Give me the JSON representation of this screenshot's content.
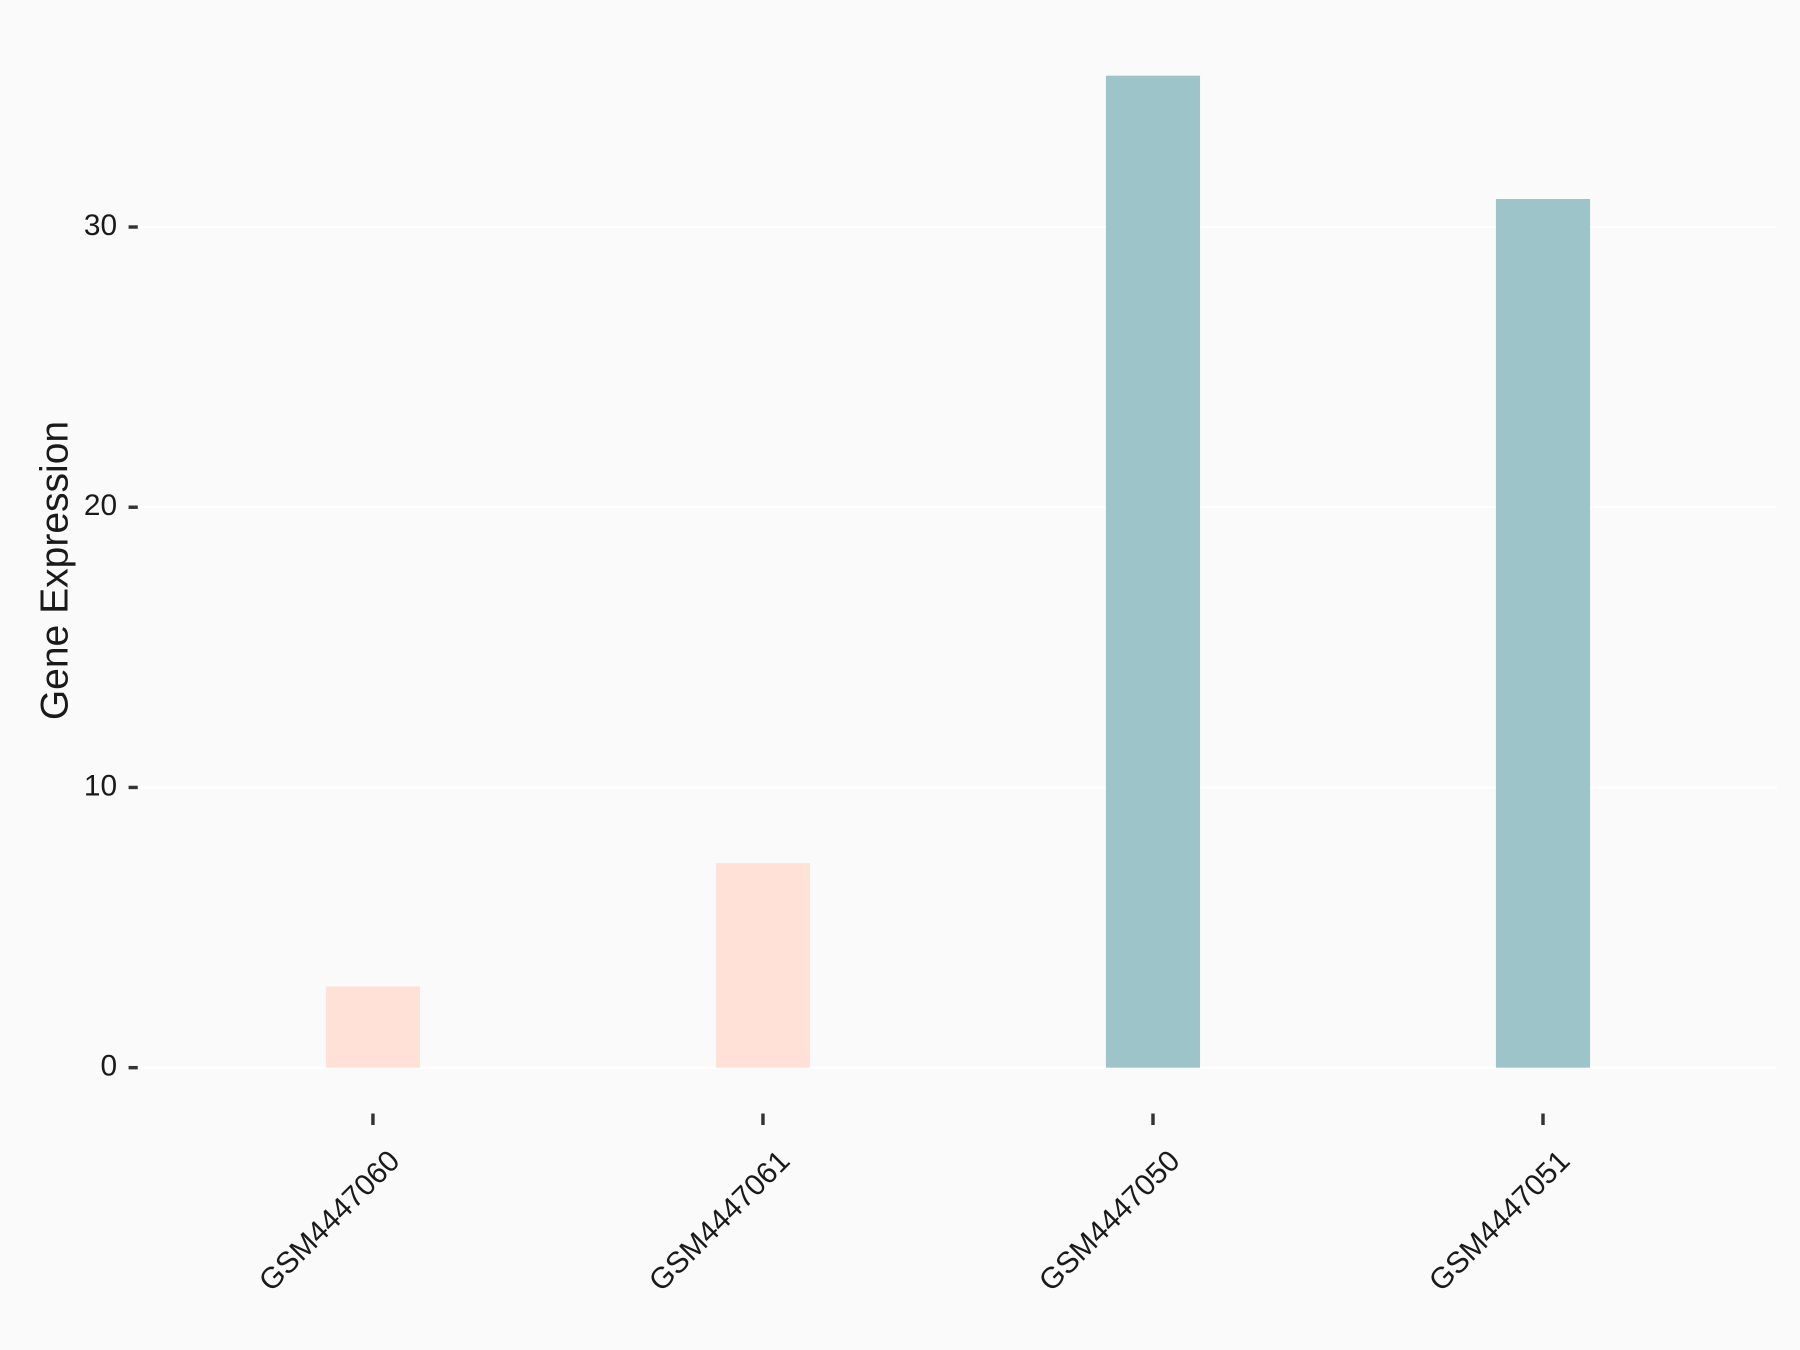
{
  "chart_data": {
    "type": "bar",
    "y_label": "Gene Expression",
    "categories": [
      "GSM4447060",
      "GSM4447061",
      "GSM4447050",
      "GSM4447051"
    ],
    "values": [
      2.9,
      7.3,
      35.4,
      31.0
    ],
    "colors": [
      "#ffe1d7",
      "#ffe1d7",
      "#9dc4c8",
      "#9dc4c8"
    ],
    "ylim": [
      -1.8,
      37.2
    ],
    "yticks": [
      0,
      10,
      20,
      30
    ],
    "grid": true
  }
}
